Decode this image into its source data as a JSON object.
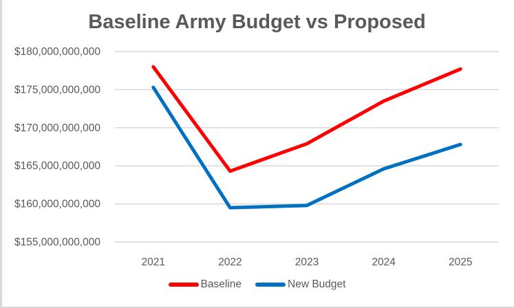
{
  "chart_data": {
    "type": "line",
    "title": "Baseline Army Budget vs Proposed",
    "xlabel": "",
    "ylabel": "",
    "categories": [
      "2021",
      "2022",
      "2023",
      "2024",
      "2025"
    ],
    "ylim": [
      155000000000,
      180000000000
    ],
    "yticks": [
      180000000000,
      175000000000,
      170000000000,
      165000000000,
      160000000000,
      155000000000
    ],
    "ytick_labels": [
      "$180,000,000,000",
      "$175,000,000,000",
      "$170,000,000,000",
      "$165,000,000,000",
      "$160,000,000,000",
      "$155,000,000,000"
    ],
    "grid": true,
    "legend_position": "bottom",
    "series": [
      {
        "name": "Baseline",
        "color": "#ff0000",
        "values": [
          178000000000,
          164300000000,
          167900000000,
          173500000000,
          177700000000
        ]
      },
      {
        "name": "New Budget",
        "color": "#0070c0",
        "values": [
          175300000000,
          159500000000,
          159800000000,
          164600000000,
          167800000000
        ]
      }
    ]
  }
}
